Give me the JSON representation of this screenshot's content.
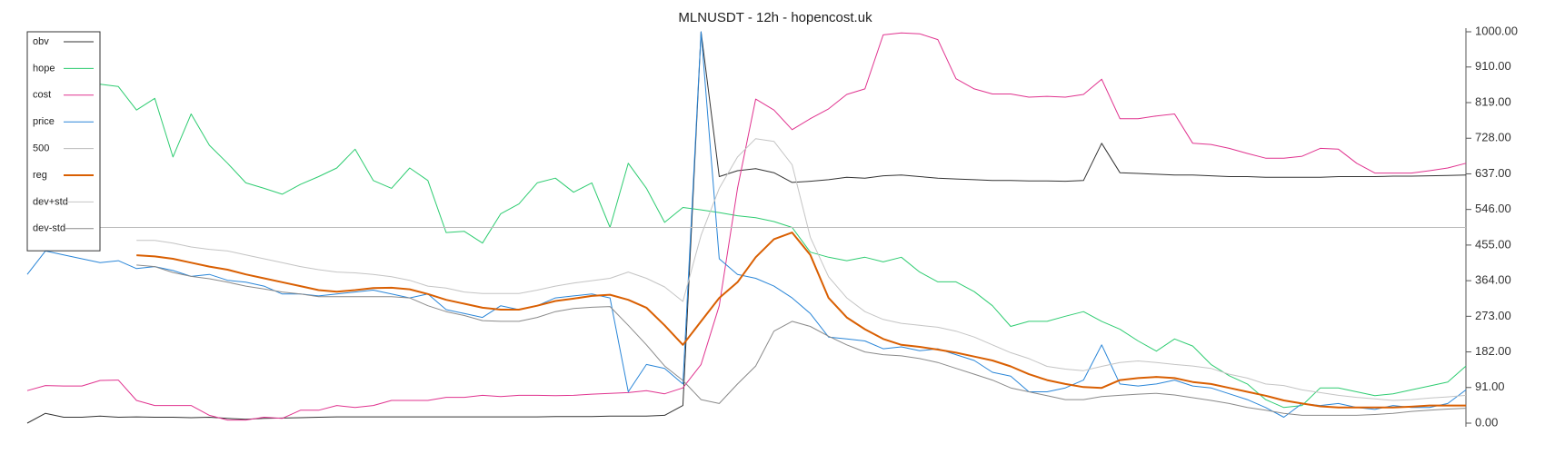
{
  "chart_data": {
    "type": "line",
    "title": "MLNUSDT - 12h - hopencost.uk",
    "ylim": [
      0,
      1000
    ],
    "yticks": [
      {
        "value": 0,
        "label": "0.00"
      },
      {
        "value": 91,
        "label": "91.00"
      },
      {
        "value": 182,
        "label": "182.00"
      },
      {
        "value": 273,
        "label": "273.00"
      },
      {
        "value": 364,
        "label": "364.00"
      },
      {
        "value": 455,
        "label": "455.00"
      },
      {
        "value": 546,
        "label": "546.00"
      },
      {
        "value": 637,
        "label": "637.00"
      },
      {
        "value": 728,
        "label": "728.00"
      },
      {
        "value": 819,
        "label": "819.00"
      },
      {
        "value": 910,
        "label": "910.00"
      },
      {
        "value": 1000,
        "label": "1000.00"
      }
    ],
    "legend": "upper-left",
    "series": [
      {
        "name": "obv",
        "color": "#333333",
        "width": 1,
        "values": [
          0,
          25,
          15,
          15,
          18,
          15,
          16,
          15,
          15,
          14,
          15,
          12,
          10,
          12,
          13,
          14,
          15,
          16,
          16,
          16,
          16,
          16,
          16,
          16,
          16,
          16,
          16,
          16,
          16,
          17,
          17,
          17,
          18,
          18,
          18,
          20,
          45,
          1000,
          630,
          645,
          650,
          640,
          615,
          618,
          622,
          628,
          626,
          632,
          634,
          630,
          626,
          624,
          622,
          620,
          620,
          619,
          619,
          618,
          620,
          715,
          640,
          638,
          636,
          634,
          634,
          632,
          630,
          630,
          628,
          628,
          628,
          628,
          630,
          630,
          630,
          631,
          631,
          632,
          633,
          634
        ]
      },
      {
        "name": "hope",
        "color": "#2ecc71",
        "width": 1,
        "values": [
          null,
          null,
          null,
          null,
          866,
          860,
          800,
          830,
          680,
          790,
          710,
          664,
          614,
          600,
          585,
          610,
          630,
          652,
          700,
          620,
          600,
          652,
          620,
          487,
          490,
          460,
          535,
          560,
          614,
          626,
          590,
          614,
          500,
          664,
          600,
          513,
          551,
          545,
          538,
          530,
          525,
          515,
          500,
          437,
          424,
          415,
          424,
          412,
          424,
          386,
          361,
          361,
          336,
          300,
          247,
          260,
          260,
          273,
          285,
          260,
          240,
          210,
          184,
          215,
          197,
          150,
          121,
          100,
          60,
          40,
          45,
          90,
          90,
          80,
          70,
          75,
          85,
          95,
          105,
          146
        ]
      },
      {
        "name": "cost",
        "color": "#e0338f",
        "width": 1,
        "values": [
          83,
          96,
          95,
          95,
          109,
          110,
          58,
          45,
          45,
          45,
          20,
          8,
          8,
          15,
          12,
          33,
          33,
          45,
          40,
          45,
          58,
          58,
          58,
          66,
          66,
          71,
          68,
          71,
          71,
          70,
          71,
          74,
          76,
          78,
          83,
          75,
          90,
          150,
          300,
          600,
          828,
          800,
          750,
          778,
          803,
          840,
          854,
          992,
          997,
          995,
          980,
          880,
          854,
          841,
          841,
          833,
          835,
          833,
          840,
          879,
          778,
          778,
          785,
          790,
          715,
          712,
          702,
          689,
          677,
          677,
          682,
          702,
          700,
          664,
          639,
          639,
          639,
          645,
          652,
          664
        ]
      },
      {
        "name": "price",
        "color": "#2a86d8",
        "width": 1,
        "values": [
          380,
          440,
          430,
          420,
          410,
          415,
          395,
          400,
          390,
          375,
          380,
          365,
          360,
          350,
          330,
          330,
          325,
          330,
          335,
          340,
          330,
          320,
          330,
          290,
          280,
          270,
          300,
          290,
          300,
          320,
          325,
          330,
          320,
          80,
          150,
          140,
          100,
          1000,
          420,
          380,
          370,
          350,
          320,
          280,
          220,
          215,
          210,
          190,
          195,
          185,
          190,
          175,
          160,
          130,
          120,
          80,
          80,
          90,
          110,
          200,
          100,
          95,
          100,
          110,
          95,
          90,
          75,
          60,
          40,
          15,
          50,
          45,
          50,
          40,
          35,
          45,
          40,
          40,
          50,
          85
        ]
      },
      {
        "name": "500",
        "color": "#bbbbbb",
        "width": 1,
        "hline": 500
      },
      {
        "name": "reg",
        "color": "#d95f02",
        "width": 2,
        "values": [
          null,
          null,
          null,
          null,
          null,
          null,
          429,
          426,
          420,
          410,
          400,
          392,
          380,
          370,
          360,
          350,
          340,
          336,
          340,
          345,
          346,
          342,
          330,
          315,
          305,
          295,
          290,
          290,
          300,
          312,
          318,
          325,
          328,
          315,
          295,
          250,
          200,
          260,
          320,
          360,
          424,
          470,
          487,
          430,
          320,
          270,
          240,
          215,
          200,
          195,
          188,
          180,
          170,
          160,
          145,
          125,
          110,
          100,
          92,
          90,
          110,
          115,
          118,
          115,
          105,
          100,
          90,
          80,
          70,
          58,
          50,
          43,
          40,
          40,
          40,
          40,
          42,
          45,
          45,
          45
        ]
      },
      {
        "name": "dev+std",
        "color": "#c4c4c4",
        "width": 1,
        "values": [
          null,
          null,
          null,
          null,
          null,
          null,
          467,
          467,
          460,
          450,
          444,
          440,
          430,
          420,
          410,
          400,
          392,
          386,
          384,
          380,
          374,
          365,
          350,
          345,
          335,
          331,
          331,
          331,
          340,
          350,
          358,
          364,
          370,
          386,
          370,
          348,
          311,
          480,
          600,
          680,
          727,
          720,
          660,
          475,
          374,
          320,
          285,
          265,
          255,
          250,
          245,
          235,
          220,
          200,
          180,
          165,
          145,
          138,
          134,
          145,
          155,
          159,
          155,
          150,
          146,
          140,
          125,
          115,
          100,
          96,
          85,
          78,
          71,
          66,
          62,
          58,
          60,
          64,
          67,
          71
        ]
      },
      {
        "name": "dev-std",
        "color": "#8a8a8a",
        "width": 1,
        "values": [
          null,
          null,
          null,
          null,
          null,
          null,
          404,
          400,
          385,
          375,
          369,
          360,
          350,
          343,
          335,
          330,
          323,
          323,
          323,
          323,
          323,
          320,
          300,
          285,
          275,
          262,
          260,
          260,
          270,
          285,
          293,
          296,
          298,
          250,
          200,
          146,
          109,
          60,
          50,
          100,
          146,
          235,
          260,
          247,
          222,
          200,
          182,
          175,
          172,
          165,
          155,
          140,
          125,
          110,
          90,
          80,
          70,
          60,
          60,
          68,
          71,
          74,
          76,
          72,
          65,
          58,
          50,
          40,
          33,
          25,
          20,
          20,
          20,
          20,
          22,
          25,
          30,
          33,
          36,
          38
        ]
      }
    ]
  }
}
